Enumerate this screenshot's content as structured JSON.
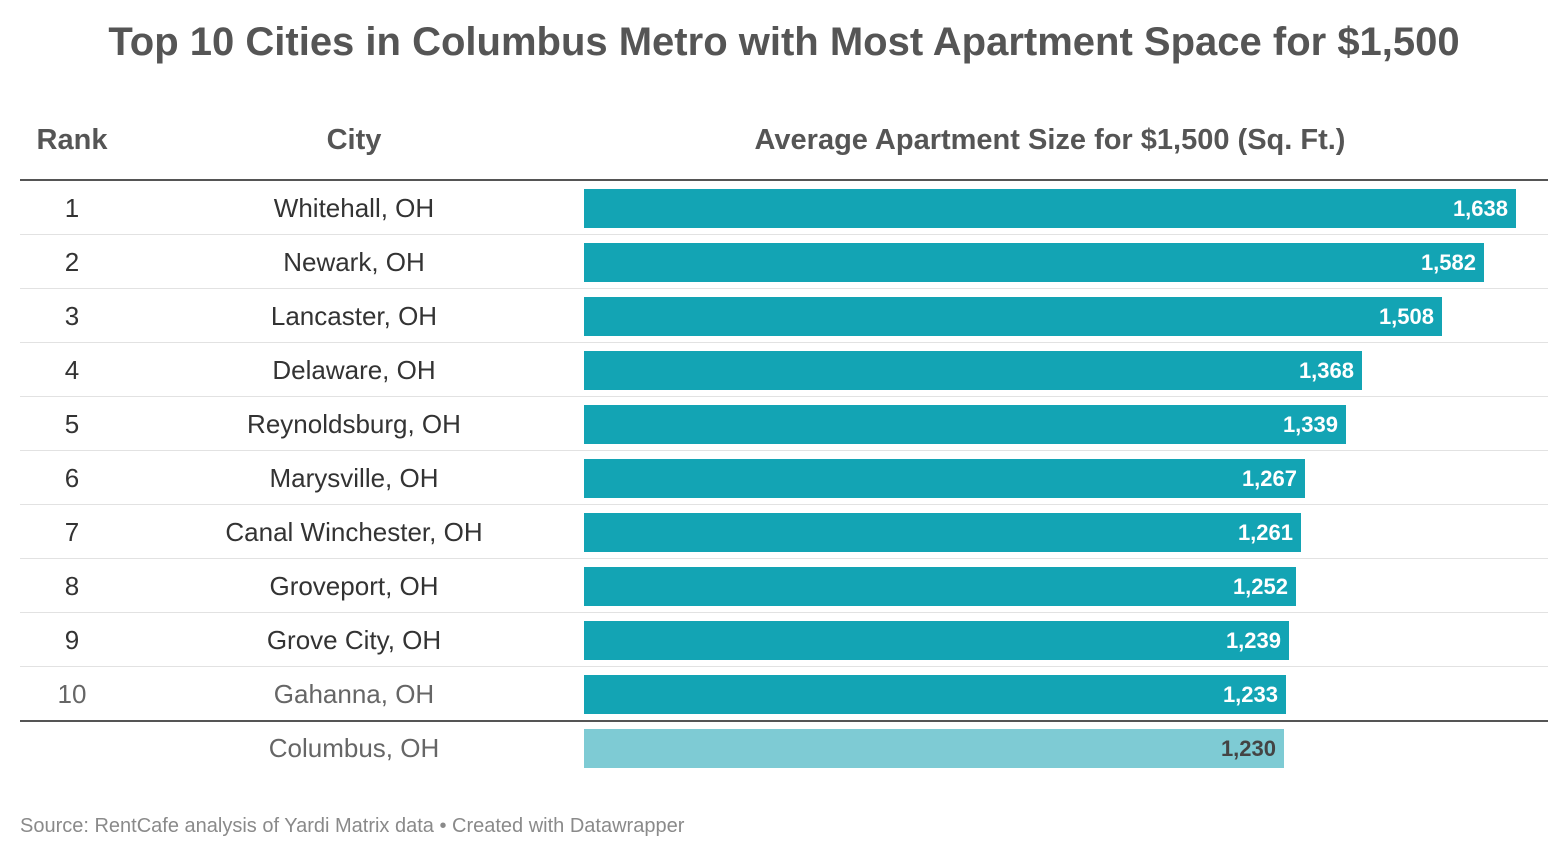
{
  "title": "Top 10 Cities in Columbus Metro with Most Apartment Space for $1,500",
  "columns": {
    "rank": "Rank",
    "city": "City",
    "value": "Average Apartment Size for $1,500 (Sq. Ft.)"
  },
  "source": "Source: RentCafe analysis of Yardi Matrix data • Created with Datawrapper",
  "colors": {
    "bar": "#13a4b4",
    "reference_bar": "#7ecbd4"
  },
  "chart_data": {
    "type": "bar",
    "orientation": "horizontal",
    "title": "Top 10 Cities in Columbus Metro with Most Apartment Space for $1,500",
    "xlabel": "Average Apartment Size for $1,500 (Sq. Ft.)",
    "rows": [
      {
        "rank": "1",
        "city": "Whitehall, OH",
        "value": 1638,
        "label": "1,638"
      },
      {
        "rank": "2",
        "city": "Newark, OH",
        "value": 1582,
        "label": "1,582"
      },
      {
        "rank": "3",
        "city": "Lancaster, OH",
        "value": 1508,
        "label": "1,508"
      },
      {
        "rank": "4",
        "city": "Delaware, OH",
        "value": 1368,
        "label": "1,368"
      },
      {
        "rank": "5",
        "city": "Reynoldsburg, OH",
        "value": 1339,
        "label": "1,339"
      },
      {
        "rank": "6",
        "city": "Marysville, OH",
        "value": 1267,
        "label": "1,267"
      },
      {
        "rank": "7",
        "city": "Canal Winchester, OH",
        "value": 1261,
        "label": "1,261"
      },
      {
        "rank": "8",
        "city": "Groveport, OH",
        "value": 1252,
        "label": "1,252"
      },
      {
        "rank": "9",
        "city": "Grove City, OH",
        "value": 1239,
        "label": "1,239"
      },
      {
        "rank": "10",
        "city": "Gahanna, OH",
        "value": 1233,
        "label": "1,233"
      }
    ],
    "reference": {
      "rank": "",
      "city": "Columbus, OH",
      "value": 1230,
      "label": "1,230"
    },
    "xlim": [
      0,
      1638
    ]
  }
}
